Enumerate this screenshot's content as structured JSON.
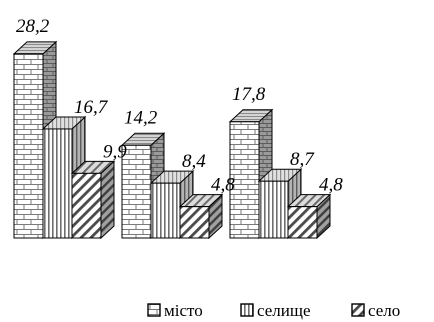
{
  "chart_data": {
    "type": "bar",
    "style": "3d-clustered",
    "groups": 3,
    "series": [
      {
        "name": "місто",
        "values": [
          28.2,
          14.2,
          17.8
        ],
        "pattern": "brick"
      },
      {
        "name": "селище",
        "values": [
          16.7,
          8.4,
          8.7
        ],
        "pattern": "vertical-stripes"
      },
      {
        "name": "село",
        "values": [
          9.9,
          4.8,
          4.8
        ],
        "pattern": "diagonal-stripes"
      }
    ],
    "data_labels": [
      [
        "28,2",
        "16,7",
        "9,9"
      ],
      [
        "14,2",
        "8,4",
        "4,8"
      ],
      [
        "17,8",
        "8,7",
        "4,8"
      ]
    ],
    "legend_position": "bottom-right",
    "grid": false,
    "axes_visible": false
  }
}
